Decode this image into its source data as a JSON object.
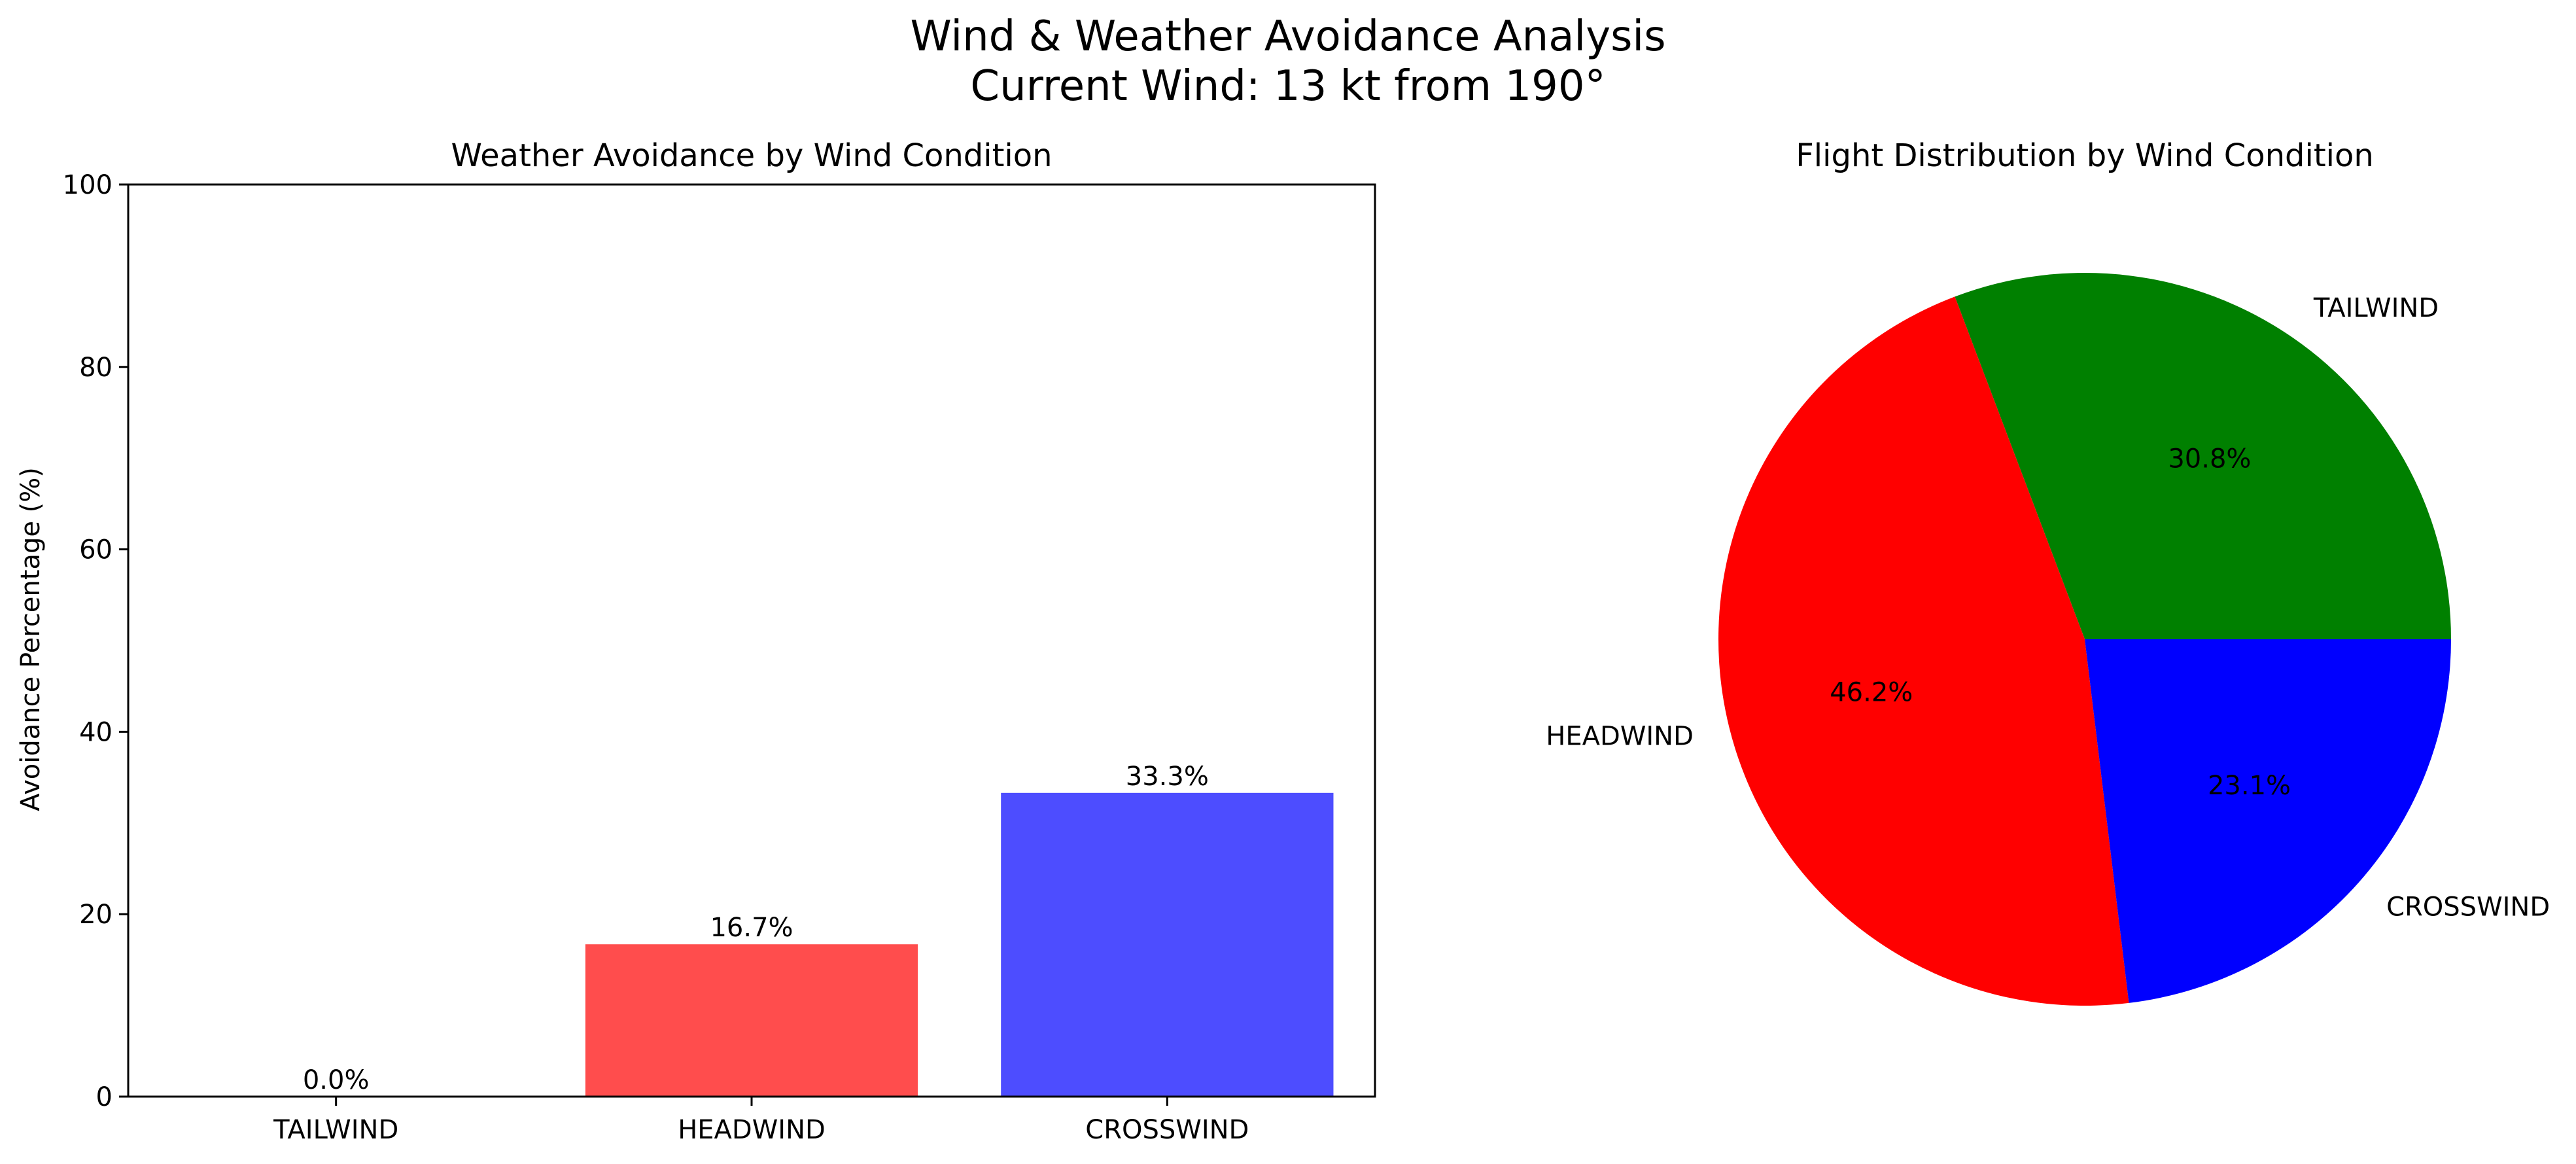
{
  "figure": {
    "title_line1": "Wind & Weather Avoidance Analysis",
    "title_line2": "Current Wind: 13 kt from 190°"
  },
  "chart_data": [
    {
      "type": "bar",
      "title": "Weather Avoidance by Wind Condition",
      "xlabel": "",
      "ylabel": "Avoidance Percentage (%)",
      "categories": [
        "TAILWIND",
        "HEADWIND",
        "CROSSWIND"
      ],
      "values": [
        0.0,
        16.7,
        33.3
      ],
      "value_labels": [
        "0.0%",
        "16.7%",
        "33.3%"
      ],
      "colors": [
        "#00b000",
        "#ff4d4d",
        "#4d4dff"
      ],
      "ylim": [
        0,
        100
      ],
      "yticks": [
        0,
        20,
        40,
        60,
        80,
        100
      ],
      "grid": false
    },
    {
      "type": "pie",
      "title": "Flight Distribution by Wind Condition",
      "labels": [
        "TAILWIND",
        "HEADWIND",
        "CROSSWIND"
      ],
      "values": [
        30.8,
        46.2,
        23.1
      ],
      "pct_labels": [
        "30.8%",
        "46.2%",
        "23.1%"
      ],
      "colors": [
        "#008000",
        "#ff0000",
        "#0000ff"
      ]
    }
  ]
}
